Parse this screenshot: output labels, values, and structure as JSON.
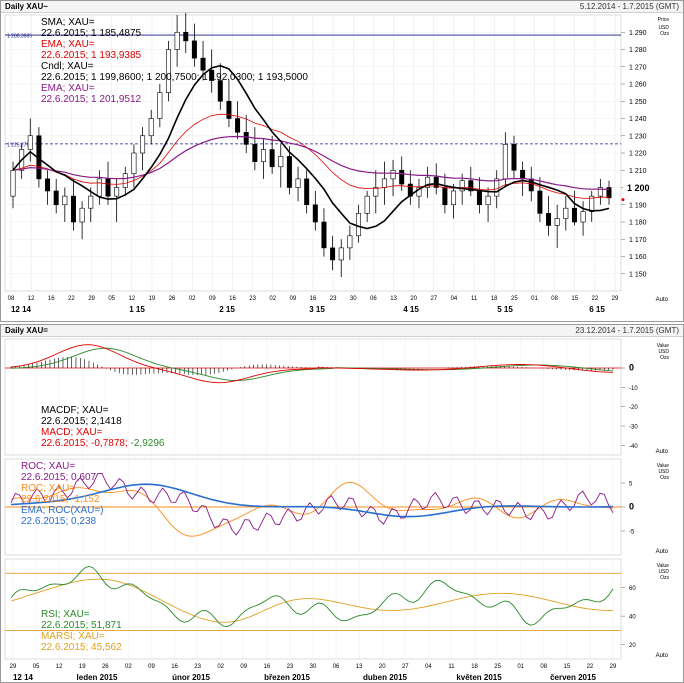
{
  "price_window": {
    "title": "Daily XAU~",
    "range": "5.12.2014 - 1.7.2015 (GMT)",
    "units": [
      "Price",
      "USD",
      "Ozs"
    ],
    "auto_label": "Auto",
    "hline_top_label": "1 288,3665",
    "hline_mid_label": "1 225,2790",
    "current_price_label": "1 200",
    "x_ticks_day": [
      "08",
      "12",
      "16",
      "22",
      "29",
      "05",
      "12",
      "19",
      "26",
      "02",
      "09",
      "16",
      "23",
      "02",
      "09",
      "16",
      "23",
      "30",
      "06",
      "13",
      "20",
      "27",
      "04",
      "11",
      "18",
      "25",
      "01",
      "08",
      "15",
      "22",
      "29"
    ],
    "x_ticks_month": [
      "12 14",
      "1 15",
      "2 15",
      "3 15",
      "4 15",
      "5 15",
      "6 15"
    ],
    "legend": [
      {
        "text": "SMA; XAU=",
        "color": "#000000"
      },
      {
        "text": "22.6.2015; 1 185,4875",
        "color": "#000000"
      },
      {
        "text": "EMA; XAU=",
        "color": "#e00000"
      },
      {
        "text": "22.6.2015; 1 193,9385",
        "color": "#e00000"
      },
      {
        "text": "Cndl; XAU=",
        "color": "#000000"
      },
      {
        "text": "22.6.2015; 1 199,8600; 1 200,7500; 1 192,0300; 1 193,5000",
        "color": "#000000"
      },
      {
        "text": "EMA; XAU=",
        "color": "#8a1a8a"
      },
      {
        "text": "22.6.2015; 1 201,9512",
        "color": "#8a1a8a"
      }
    ]
  },
  "indicator_window": {
    "title": "Daily XAU=",
    "range": "23.12.2014 - 1.7.2015 (GMT)",
    "units": [
      "Value",
      "USD",
      "Ozs"
    ],
    "auto_label": "Auto",
    "macd_legend": [
      {
        "text": "MACDF; XAU=",
        "color": "#000000"
      },
      {
        "text": "22.6.2015; 2,1418",
        "color": "#000000"
      },
      {
        "text": "MACD; XAU=",
        "color": "#e00000"
      },
      {
        "text": "22.6.2015; -0,7878; -2,9296",
        "color": "#e00000",
        "extra": "-2,9296",
        "extra_color": "#2a8a2a"
      }
    ],
    "roc_legend": [
      {
        "text": "ROC; XAU=",
        "color": "#8a1a8a"
      },
      {
        "text": "22.6.2015; 0,607",
        "color": "#8a1a8a"
      },
      {
        "text": "ROC; XAU=",
        "color": "#ff8c1a"
      },
      {
        "text": "22.6.2015; -1,152",
        "color": "#ff8c1a"
      },
      {
        "text": "EMA; ROC(XAU=)",
        "color": "#2a6ed0"
      },
      {
        "text": "22.6.2015; 0,238",
        "color": "#2a6ed0"
      }
    ],
    "rsi_legend": [
      {
        "text": "RSI; XAU=",
        "color": "#2a8a2a"
      },
      {
        "text": "22.6.2015; 51,871",
        "color": "#2a8a2a"
      },
      {
        "text": "MARSI; XAU=",
        "color": "#e0a020"
      },
      {
        "text": "22.6.2015; 45,562",
        "color": "#e0a020"
      }
    ],
    "x_ticks_day": [
      "29",
      "05",
      "12",
      "19",
      "26",
      "02",
      "09",
      "16",
      "23",
      "02",
      "09",
      "16",
      "23",
      "30",
      "06",
      "13",
      "20",
      "27",
      "04",
      "11",
      "18",
      "25",
      "01",
      "08",
      "15",
      "22",
      "29"
    ],
    "x_ticks_month": [
      "12 14",
      "leden 2015",
      "únor 2015",
      "březen 2015",
      "duben 2015",
      "květen 2015",
      "červen 2015"
    ]
  },
  "chart_data": [
    {
      "type": "candlestick",
      "title": "Daily XAU~",
      "ylim": [
        1140,
        1300
      ],
      "yticks": [
        1150,
        1160,
        1170,
        1180,
        1190,
        1200,
        1210,
        1220,
        1230,
        1240,
        1250,
        1260,
        1270,
        1280,
        1290
      ],
      "candles": [
        [
          1195,
          1215,
          1188,
          1210
        ],
        [
          1210,
          1225,
          1205,
          1222
        ],
        [
          1222,
          1240,
          1215,
          1230
        ],
        [
          1230,
          1235,
          1200,
          1205
        ],
        [
          1205,
          1210,
          1190,
          1198
        ],
        [
          1198,
          1205,
          1185,
          1190
        ],
        [
          1190,
          1200,
          1180,
          1195
        ],
        [
          1195,
          1205,
          1175,
          1180
        ],
        [
          1180,
          1192,
          1170,
          1188
        ],
        [
          1188,
          1200,
          1180,
          1195
        ],
        [
          1195,
          1210,
          1190,
          1205
        ],
        [
          1205,
          1215,
          1190,
          1195
        ],
        [
          1195,
          1205,
          1180,
          1200
        ],
        [
          1200,
          1212,
          1195,
          1208
        ],
        [
          1208,
          1225,
          1200,
          1220
        ],
        [
          1220,
          1235,
          1210,
          1230
        ],
        [
          1230,
          1245,
          1225,
          1240
        ],
        [
          1240,
          1260,
          1235,
          1255
        ],
        [
          1255,
          1285,
          1250,
          1280
        ],
        [
          1280,
          1300,
          1270,
          1290
        ],
        [
          1290,
          1302,
          1278,
          1285
        ],
        [
          1285,
          1295,
          1270,
          1275
        ],
        [
          1275,
          1285,
          1262,
          1268
        ],
        [
          1268,
          1280,
          1255,
          1262
        ],
        [
          1262,
          1272,
          1245,
          1250
        ],
        [
          1250,
          1262,
          1235,
          1240
        ],
        [
          1240,
          1250,
          1228,
          1232
        ],
        [
          1232,
          1242,
          1220,
          1225
        ],
        [
          1225,
          1235,
          1210,
          1215
        ],
        [
          1215,
          1228,
          1205,
          1222
        ],
        [
          1222,
          1230,
          1208,
          1212
        ],
        [
          1212,
          1225,
          1200,
          1218
        ],
        [
          1218,
          1224,
          1196,
          1200
        ],
        [
          1200,
          1212,
          1192,
          1205
        ],
        [
          1205,
          1210,
          1185,
          1190
        ],
        [
          1190,
          1198,
          1175,
          1180
        ],
        [
          1180,
          1188,
          1160,
          1165
        ],
        [
          1165,
          1172,
          1152,
          1158
        ],
        [
          1158,
          1170,
          1148,
          1165
        ],
        [
          1165,
          1178,
          1158,
          1172
        ],
        [
          1172,
          1190,
          1168,
          1185
        ],
        [
          1185,
          1198,
          1180,
          1195
        ],
        [
          1195,
          1210,
          1185,
          1200
        ],
        [
          1200,
          1215,
          1190,
          1205
        ],
        [
          1205,
          1216,
          1195,
          1210
        ],
        [
          1210,
          1218,
          1198,
          1202
        ],
        [
          1202,
          1210,
          1190,
          1195
        ],
        [
          1195,
          1205,
          1188,
          1200
        ],
        [
          1200,
          1212,
          1194,
          1206
        ],
        [
          1206,
          1214,
          1196,
          1200
        ],
        [
          1200,
          1208,
          1185,
          1190
        ],
        [
          1190,
          1202,
          1182,
          1198
        ],
        [
          1198,
          1208,
          1190,
          1204
        ],
        [
          1204,
          1212,
          1195,
          1198
        ],
        [
          1198,
          1206,
          1185,
          1190
        ],
        [
          1190,
          1200,
          1180,
          1195
        ],
        [
          1195,
          1210,
          1188,
          1205
        ],
        [
          1205,
          1232,
          1200,
          1225
        ],
        [
          1225,
          1230,
          1205,
          1210
        ],
        [
          1210,
          1215,
          1195,
          1205
        ],
        [
          1205,
          1212,
          1192,
          1198
        ],
        [
          1198,
          1206,
          1180,
          1185
        ],
        [
          1185,
          1195,
          1172,
          1178
        ],
        [
          1178,
          1190,
          1165,
          1182
        ],
        [
          1182,
          1195,
          1175,
          1188
        ],
        [
          1188,
          1198,
          1178,
          1180
        ],
        [
          1180,
          1192,
          1172,
          1186
        ],
        [
          1186,
          1198,
          1180,
          1195
        ],
        [
          1195,
          1205,
          1190,
          1200
        ],
        [
          1200,
          1204,
          1190,
          1194
        ]
      ]
    },
    {
      "type": "line",
      "title": "MACD",
      "ylim": [
        -45,
        15
      ],
      "yticks": [
        0,
        -10,
        -20,
        -30,
        -40
      ]
    },
    {
      "type": "line",
      "title": "ROC",
      "ylim": [
        -10,
        10
      ],
      "yticks": [
        5,
        0,
        -5
      ]
    },
    {
      "type": "line",
      "title": "RSI",
      "ylim": [
        10,
        80
      ],
      "yticks": [
        60,
        40,
        20
      ]
    }
  ]
}
